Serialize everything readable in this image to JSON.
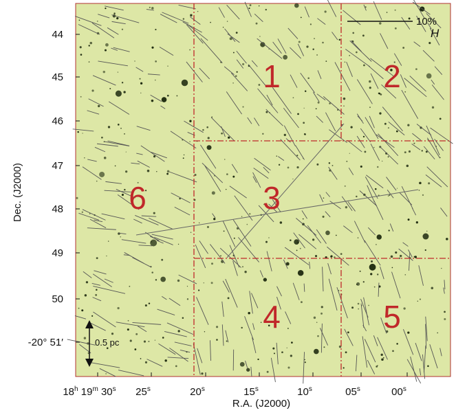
{
  "y_axis": {
    "title": "Dec. (J2000)",
    "ticks": [
      "44",
      "45",
      "46",
      "47",
      "48",
      "49",
      "50",
      "-20° 51′"
    ]
  },
  "x_axis": {
    "title": "R.A. (J2000)",
    "ticks": [
      [
        {
          "t": "18"
        },
        {
          "s": "h"
        },
        {
          "t": " 19"
        },
        {
          "s": "m"
        },
        {
          "t": " 30"
        },
        {
          "s": "s"
        }
      ],
      [
        {
          "t": "25"
        },
        {
          "s": "s"
        }
      ],
      [
        {
          "t": "20"
        },
        {
          "s": "s"
        }
      ],
      [
        {
          "t": "15"
        },
        {
          "s": "s"
        }
      ],
      [
        {
          "t": "10"
        },
        {
          "s": "s"
        }
      ],
      [
        {
          "t": "05"
        },
        {
          "s": "s"
        }
      ],
      [
        {
          "t": "00"
        },
        {
          "s": "s"
        }
      ]
    ]
  },
  "regions": [
    "1",
    "2",
    "3",
    "4",
    "5",
    "6"
  ],
  "scale_bar": {
    "label": "10%",
    "band": "H"
  },
  "size_bar": {
    "label": "0.5 pc"
  }
}
